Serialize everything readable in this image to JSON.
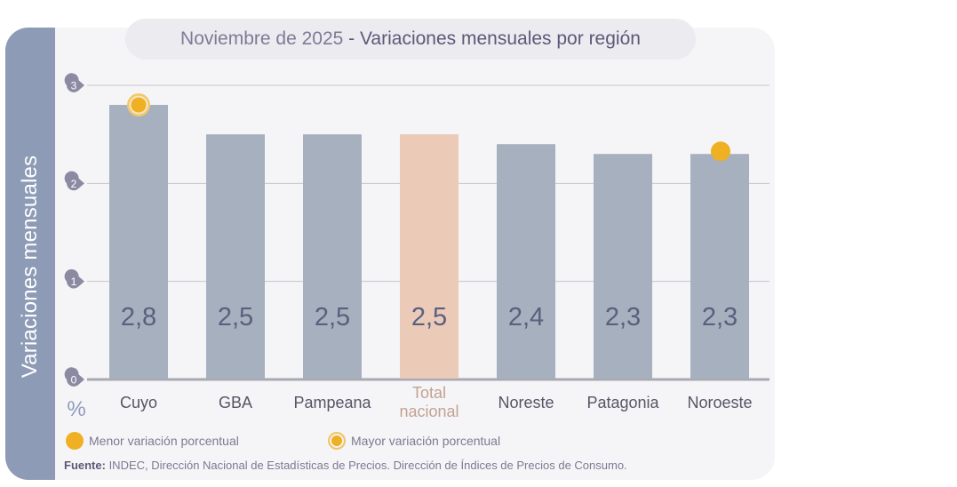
{
  "title": {
    "prefix": "Noviembre de 2025",
    "separator": " - ",
    "main": "Variaciones mensuales por región"
  },
  "side_label": "Variaciones mensuales",
  "unit_label": "%",
  "legend": {
    "min_label": "Menor variación porcentual",
    "max_label": "Mayor variación porcentual"
  },
  "source": {
    "label": "Fuente:",
    "text": " INDEC, Dirección Nacional de Estadísticas de Precios. Dirección de Índices de Precios de Consumo."
  },
  "colors": {
    "bar": "#a6b0be",
    "bar_highlight": "#ebcbb8",
    "marker": "#efb023",
    "value_text": "#5a5f7f",
    "tick_bubble": "#8c8aa2",
    "category_text": "#555566",
    "category_highlight_text": "#c2a291"
  },
  "chart_data": {
    "type": "bar",
    "title": "Noviembre de 2025 - Variaciones mensuales por región",
    "xlabel": "",
    "ylabel": "Variaciones mensuales (%)",
    "ylim": [
      0,
      3
    ],
    "yticks": [
      0,
      1,
      2,
      3
    ],
    "grid": true,
    "categories": [
      "Cuyo",
      "GBA",
      "Pampeana",
      "Total nacional",
      "Noreste",
      "Patagonia",
      "Noroeste"
    ],
    "category_lines": [
      [
        "Cuyo"
      ],
      [
        "GBA"
      ],
      [
        "Pampeana"
      ],
      [
        "Total",
        "nacional"
      ],
      [
        "Noreste"
      ],
      [
        "Patagonia"
      ],
      [
        "Noroeste"
      ]
    ],
    "values": [
      2.8,
      2.5,
      2.5,
      2.5,
      2.4,
      2.3,
      2.3
    ],
    "value_labels": [
      "2,8",
      "2,5",
      "2,5",
      "2,5",
      "2,4",
      "2,3",
      "2,3"
    ],
    "highlight_category": "Total nacional",
    "markers": [
      {
        "category": "Cuyo",
        "type": "max",
        "meaning": "Mayor variación porcentual"
      },
      {
        "category": "Noroeste",
        "type": "min",
        "meaning": "Menor variación porcentual"
      }
    ],
    "legend_position": "bottom-left"
  }
}
